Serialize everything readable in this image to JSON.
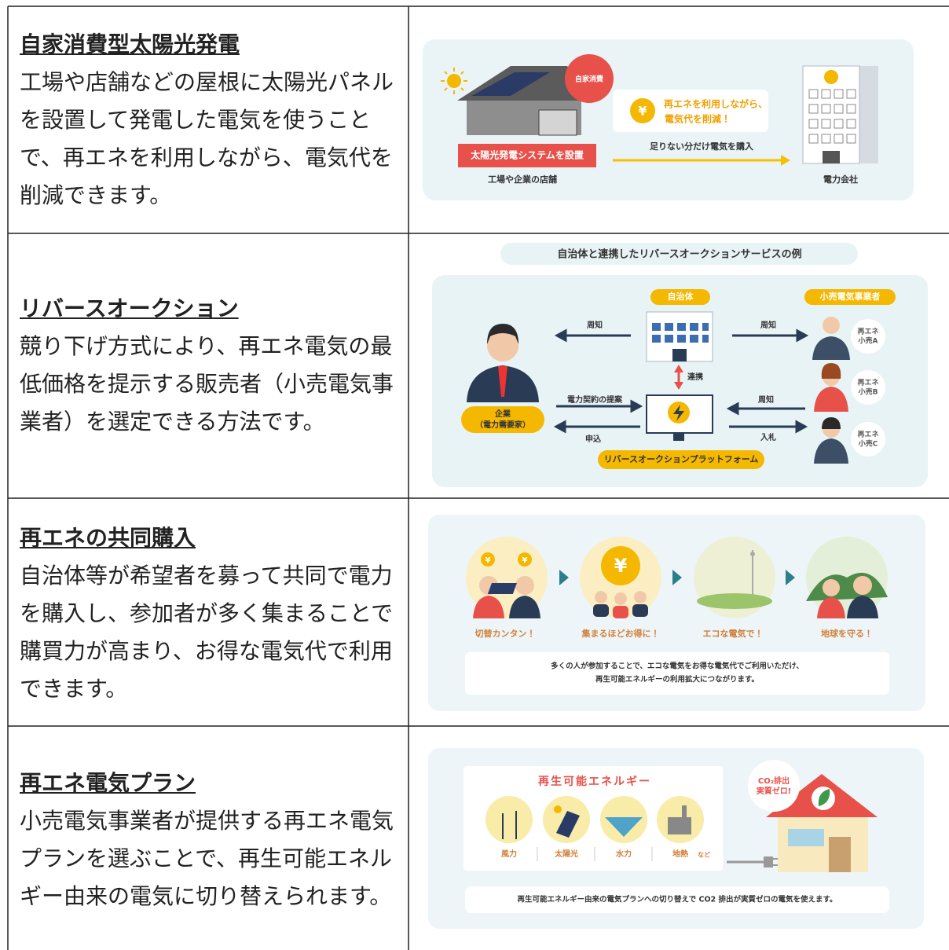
{
  "table": {
    "rows": [
      {
        "title": "自家消費型太陽光発電",
        "description": "工場や店舗などの屋根に太陽光パネルを設置して発電した電気を使うことで、再エネを利用しながら、電気代を削減できます。",
        "figure": {
          "badge": "自家消費",
          "yen": "¥",
          "message": [
            "再エネを利用しながら、",
            "電気代を削減！"
          ],
          "arrow_label": "足りない分だけ電気を購入",
          "button": "太陽光発電システムを設置",
          "left_caption": "工場や企業の店舗",
          "right_caption": "電力会社"
        }
      },
      {
        "title": "リバースオークション",
        "description": "競り下げ方式により、再エネ電気の最低価格を提示する販売者（小売電気事業者）を選定できる方法です。",
        "figure": {
          "heading": "自治体と連携したリバースオークションサービスの例",
          "municipality": "自治体",
          "retailers": "小売電気事業者",
          "notice_left": "周知",
          "notice_right": "周知",
          "cooperation": "連携",
          "proposal": "電力契約の提案",
          "notice_platform": "周知",
          "apply": "申込",
          "bid": "入札",
          "company": [
            "企業",
            "（電力需要家）"
          ],
          "platform": "リバースオークションプラットフォーム",
          "retailer_labels": [
            [
              "再エネ",
              "小売A"
            ],
            [
              "再エネ",
              "小売B"
            ],
            [
              "再エネ",
              "小売C"
            ]
          ]
        }
      },
      {
        "title": "再エネの共同購入",
        "description": "自治体等が希望者を募って共同で電力を購入し、参加者が多く集まることで購買力が高まり、お得な電気代で利用できます。",
        "figure": {
          "coin": "¥",
          "steps": [
            "切替カンタン！",
            "集まるほどお得に！",
            "エコな電気で！",
            "地球を守る！"
          ],
          "note": [
            "多くの人が参加することで、エコな電気をお得な電気代でご利用いただけ、",
            "再生可能エネルギーの利用拡大につながります。"
          ]
        }
      },
      {
        "title": "再エネ電気プラン",
        "description": "小売電気事業者が提供する再エネ電気プランを選ぶことで、再生可能エネルギー由来の電気に切り替えられます。",
        "figure": {
          "heading": "再生可能エネルギー",
          "sources": [
            "風力",
            "太陽光",
            "水力",
            "地熱"
          ],
          "etc": "など",
          "badge": [
            "CO₂排出",
            "実質ゼロ!"
          ],
          "note": "再生可能エネルギー由来の電気プランへの切り替えで CO2 排出が実質ゼロの電気を使えます。"
        }
      }
    ]
  }
}
